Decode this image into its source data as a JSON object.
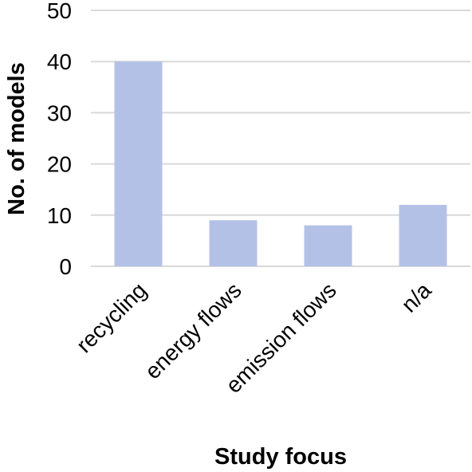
{
  "chart_data": {
    "type": "bar",
    "title": "",
    "xlabel": "Study focus",
    "ylabel": "No. of models",
    "categories": [
      "recycling",
      "energy flows",
      "emission flows",
      "n/a"
    ],
    "values": [
      40,
      9,
      8,
      12
    ],
    "ylim": [
      0,
      50
    ],
    "yticks": [
      0,
      10,
      20,
      30,
      40,
      50
    ],
    "grid": true,
    "legend": "none",
    "bar_color": "#b4c1e7",
    "grid_color": "#d9d9d9"
  }
}
